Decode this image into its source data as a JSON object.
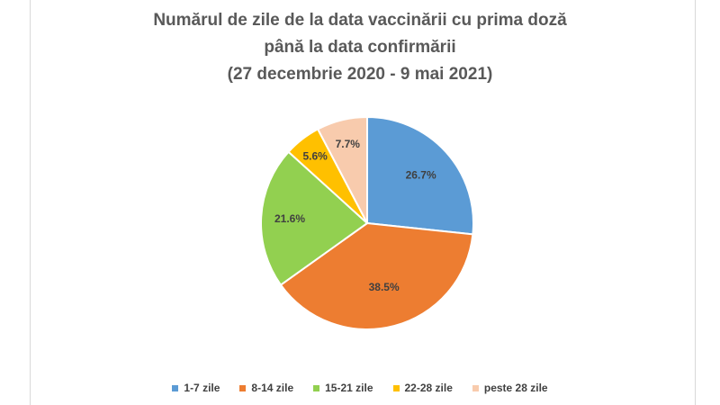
{
  "chart_data": {
    "type": "pie",
    "title": [
      "Numărul de zile de la data vaccinării cu prima doză",
      "până la data confirmării",
      "(27 decembrie 2020 - 9 mai 2021)"
    ],
    "categories": [
      "1-7 zile",
      "8-14 zile",
      "15-21 zile",
      "22-28 zile",
      "peste 28 zile"
    ],
    "values": [
      26.7,
      38.5,
      21.6,
      5.6,
      7.7
    ],
    "labels": [
      "26.7%",
      "38.5%",
      "21.6%",
      "5.6%",
      "7.7%"
    ],
    "colors": [
      "#5b9bd5",
      "#ed7d31",
      "#92d050",
      "#ffc000",
      "#f8cbad"
    ],
    "start_angle": "12 o'clock",
    "direction": "clockwise",
    "legend_position": "bottom"
  }
}
